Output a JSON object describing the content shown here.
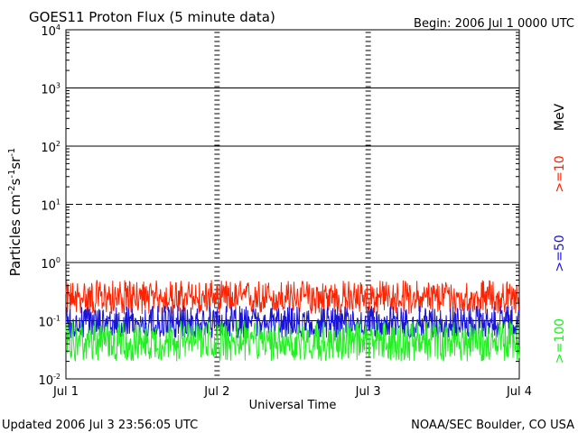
{
  "chart_data": {
    "type": "line",
    "title": "GOES11 Proton Flux (5 minute data)",
    "begin_label": "Begin: 2006 Jul 1 0000 UTC",
    "xlabel": "Universal Time",
    "ylabel": "Particles cm",
    "ylabel_sup1": "-2",
    "ylabel_mid1": "s",
    "ylabel_sup2": "-1",
    "ylabel_mid2": "sr",
    "ylabel_sup3": "-1",
    "y_scale": "log",
    "ylim": [
      0.01,
      10000
    ],
    "y_ticks": [
      {
        "base": "10",
        "exp": "4",
        "value": 10000
      },
      {
        "base": "10",
        "exp": "3",
        "value": 1000
      },
      {
        "base": "10",
        "exp": "2",
        "value": 100
      },
      {
        "base": "10",
        "exp": "1",
        "value": 10
      },
      {
        "base": "10",
        "exp": "0",
        "value": 1
      },
      {
        "base": "10",
        "exp": "-1",
        "value": 0.1
      },
      {
        "base": "10",
        "exp": "-2",
        "value": 0.01
      }
    ],
    "x_ticks": [
      "Jul 1",
      "Jul 2",
      "Jul 3",
      "Jul 4"
    ],
    "xlim_days": [
      0,
      3
    ],
    "reference_lines": [
      {
        "value": 1000,
        "style": "solid"
      },
      {
        "value": 100,
        "style": "solid"
      },
      {
        "value": 10,
        "style": "dashed"
      },
      {
        "value": 1,
        "style": "solid"
      },
      {
        "value": 0.1,
        "style": "solid"
      }
    ],
    "unit_label": "MeV",
    "series": [
      {
        "name": ">=10",
        "color": "#ff2200",
        "typical_value": 0.25,
        "range": [
          0.13,
          0.5
        ]
      },
      {
        "name": ">=50",
        "color": "#1a14d8",
        "typical_value": 0.09,
        "range": [
          0.05,
          0.18
        ]
      },
      {
        "name": ">=100",
        "color": "#22ee22",
        "typical_value": 0.045,
        "range": [
          0.02,
          0.1
        ]
      }
    ]
  },
  "footer": {
    "updated": "Updated 2006 Jul  3 23:56:05 UTC",
    "credit": "NOAA/SEC Boulder, CO USA"
  }
}
